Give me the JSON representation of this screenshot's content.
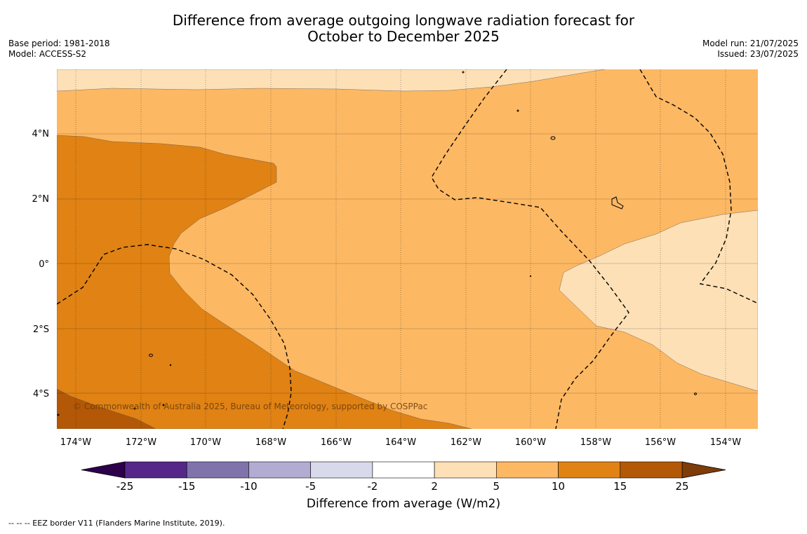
{
  "title_line1": "Difference from average outgoing longwave radiation forecast for",
  "title_line2": "October to December 2025",
  "meta_left": {
    "base_period": "Base period: 1981-2018",
    "model": "Model: ACCESS-S2"
  },
  "meta_right": {
    "model_run": "Model run: 21/07/2025",
    "issued": "Issued: 23/07/2025"
  },
  "copyright": "© Commonwealth of Australia 2025, Bureau of Meteorology, supported by COSPPac",
  "lon_labels": [
    "174°W",
    "172°W",
    "170°W",
    "168°W",
    "166°W",
    "164°W",
    "162°W",
    "160°W",
    "158°W",
    "156°W",
    "154°W"
  ],
  "lat_labels": [
    "4°N",
    "2°N",
    "0°",
    "2°S",
    "4°S"
  ],
  "colorbar": {
    "ticks": [
      "-25",
      "-15",
      "-10",
      "-5",
      "-2",
      "2",
      "5",
      "10",
      "15",
      "25"
    ],
    "colors": [
      "#542788",
      "#8073ac",
      "#b2abd2",
      "#d8daeb",
      "#ffffff",
      "#fee0b6",
      "#fdb863",
      "#e08214",
      "#b35806"
    ],
    "under_color": "#2d004b",
    "over_color": "#7f3b08",
    "label": "Difference from average (W/m2)"
  },
  "footer": "--  --  -- EEZ border V11 (Flanders Marine Institute, 2019)."
}
